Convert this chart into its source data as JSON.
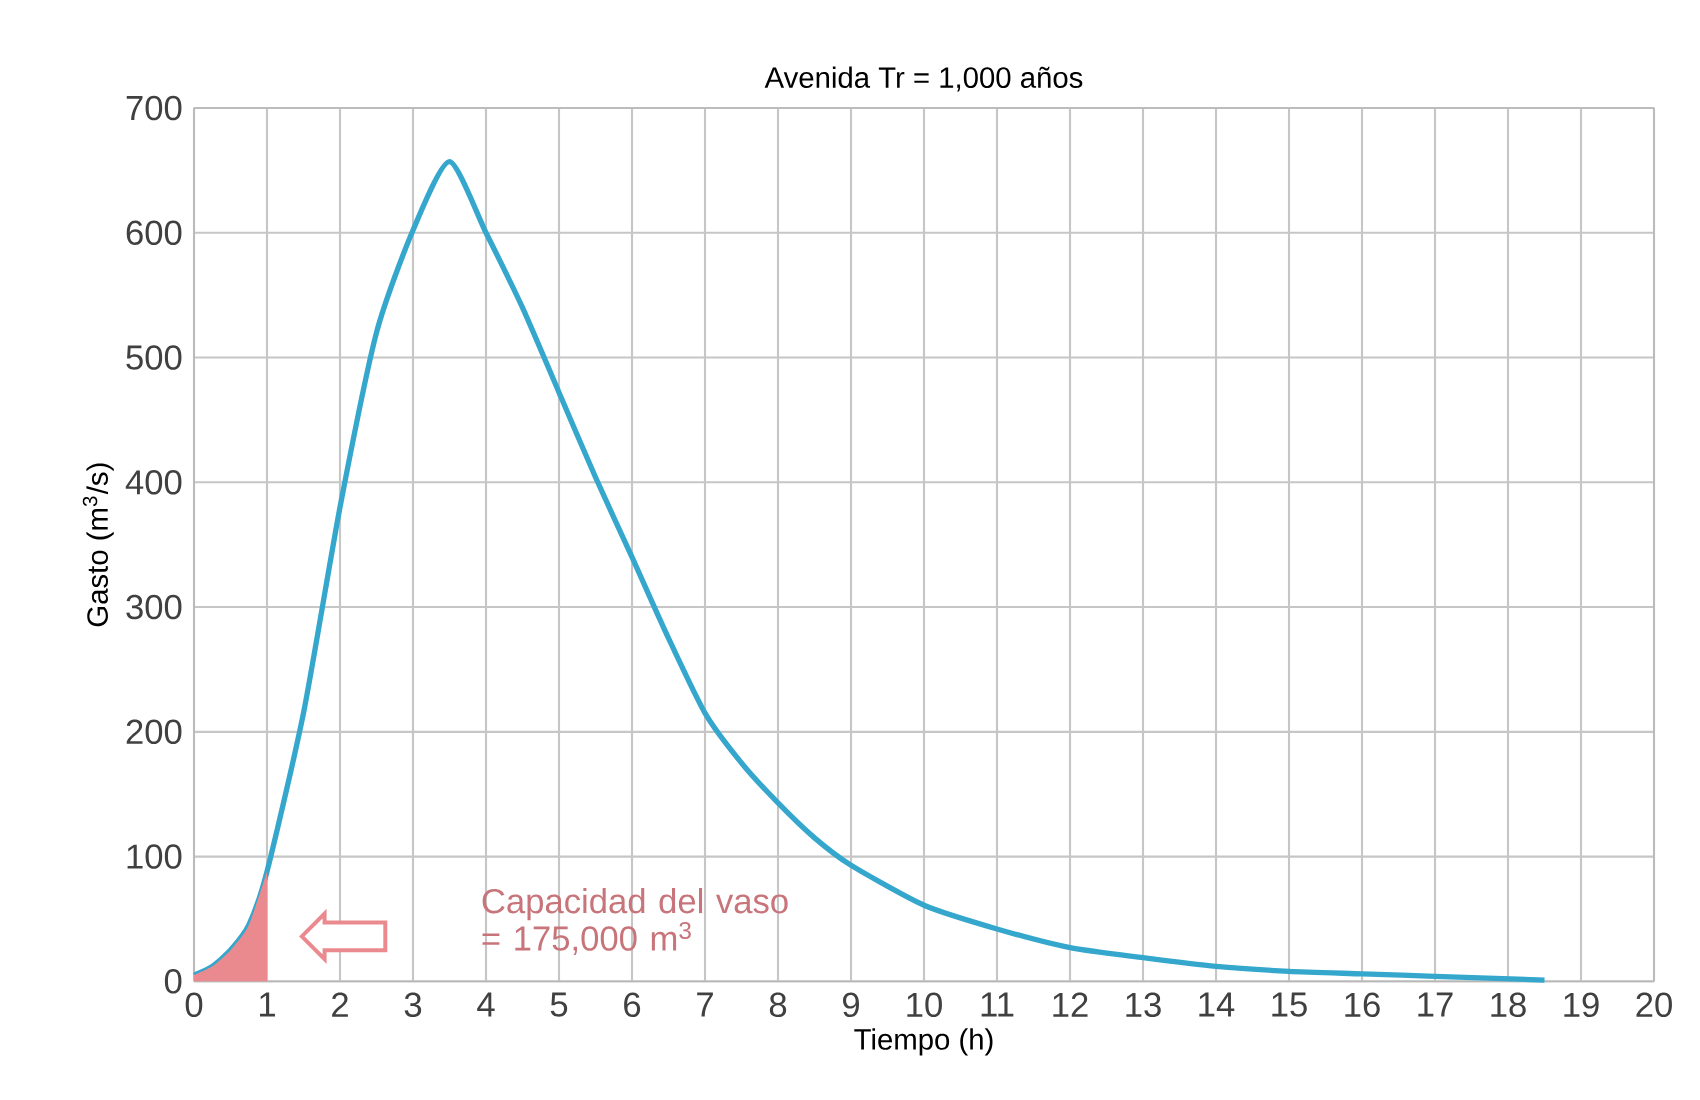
{
  "chart_data": {
    "type": "line",
    "title": "Avenida Tr = 1,000 años",
    "xlabel": "Tiempo (h)",
    "ylabel": "Gasto (m$^{3}$/s)",
    "series": [
      {
        "color": "#35a7cd",
        "x": [
          0,
          0.25,
          0.5,
          0.75,
          1,
          1.5,
          2,
          2.5,
          3,
          3.5,
          4,
          4.5,
          5,
          5.5,
          6,
          6.5,
          7,
          7.5,
          8,
          8.5,
          9,
          10,
          11,
          12,
          13,
          14,
          15,
          16,
          17,
          18.5
        ],
        "values": [
          5,
          12,
          25,
          45,
          88,
          215,
          380,
          520,
          602,
          657,
          600,
          540,
          472,
          404,
          340,
          275,
          215,
          175,
          143,
          115,
          93,
          61,
          42,
          27,
          19,
          12,
          8,
          6,
          4,
          1
        ]
      },
      {
        "type": "area",
        "color": "#ea8a8f",
        "x": [
          0,
          0.25,
          0.5,
          0.75,
          1
        ],
        "values": [
          5,
          12,
          25,
          45,
          88
        ]
      }
    ],
    "xlim": [
      0,
      20
    ],
    "ylim": [
      0,
      700
    ],
    "xticks": [
      0,
      1,
      2,
      3,
      4,
      5,
      6,
      7,
      8,
      9,
      10,
      11,
      12,
      13,
      14,
      15,
      16,
      17,
      18,
      19,
      20
    ],
    "yticks": [
      0,
      100,
      200,
      300,
      400,
      500,
      600,
      700
    ],
    "grid": true,
    "marker": "none",
    "line_style": "solid",
    "annotations": [
      "Capacidad del vaso = 175,000 m$^{3}$"
    ]
  }
}
